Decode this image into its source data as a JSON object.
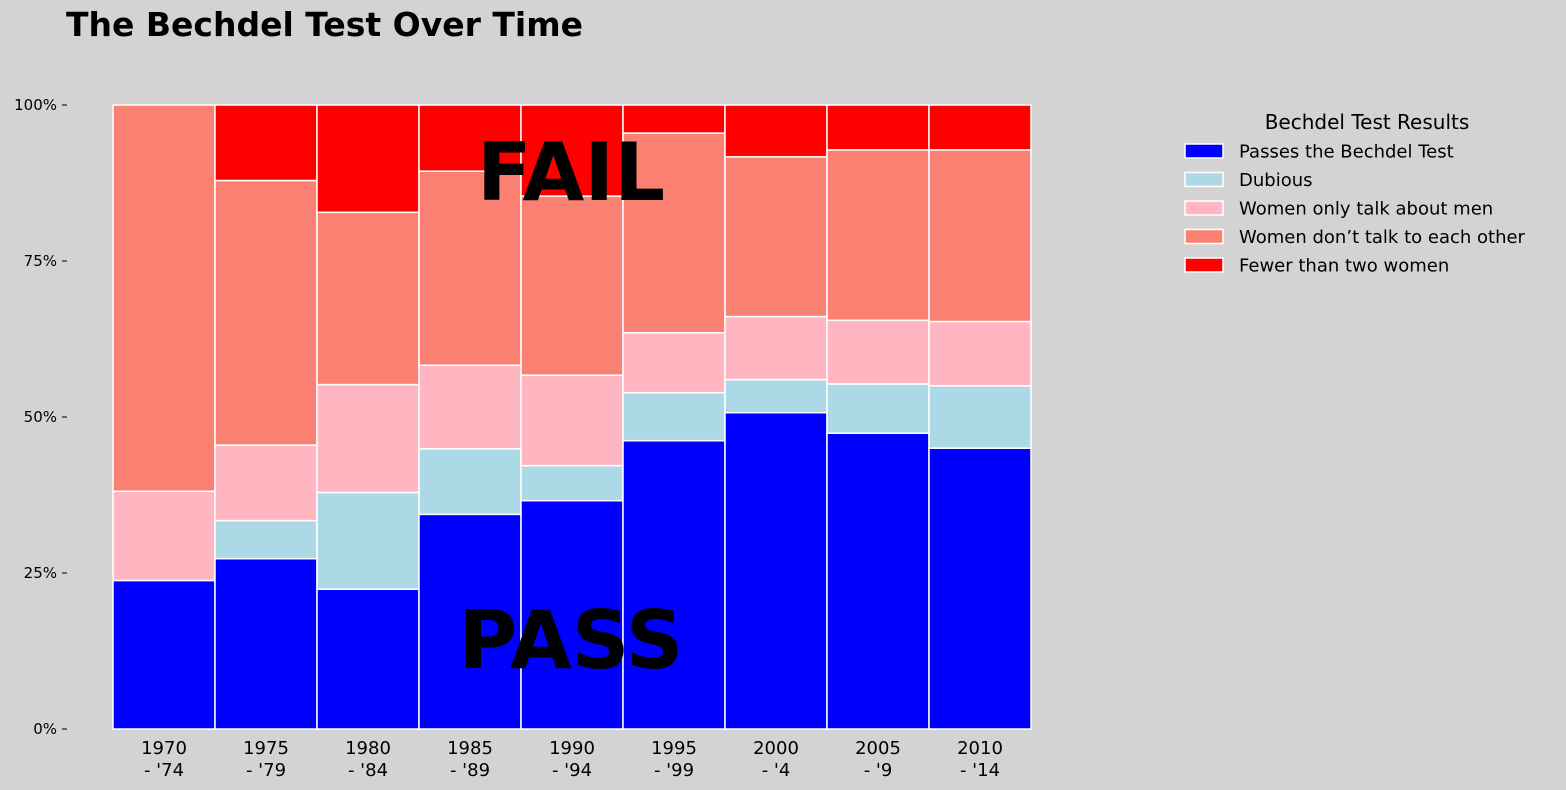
{
  "chart_data": {
    "type": "bar",
    "stacked": true,
    "title": "The Bechdel Test Over Time",
    "categories": [
      [
        "1970",
        "- '74"
      ],
      [
        "1975",
        "- '79"
      ],
      [
        "1980",
        "- '84"
      ],
      [
        "1985",
        "- '89"
      ],
      [
        "1990",
        "- '94"
      ],
      [
        "1995",
        "- '99"
      ],
      [
        "2000",
        "- '4"
      ],
      [
        "2005",
        "- '9"
      ],
      [
        "2010",
        "- '14"
      ]
    ],
    "yticks": [
      "0%",
      "25%",
      "50%",
      "75%",
      "100%"
    ],
    "ylim": [
      0,
      100
    ],
    "series": [
      {
        "name": "Passes the Bechdel Test",
        "color": "#0000ff",
        "values": [
          23.8,
          27.3,
          22.4,
          34.4,
          36.6,
          46.2,
          50.7,
          47.4,
          45.0
        ]
      },
      {
        "name": "Dubious",
        "color": "#add8e6",
        "values": [
          0.0,
          6.1,
          15.5,
          10.5,
          5.6,
          7.7,
          5.3,
          7.9,
          10.0
        ]
      },
      {
        "name": "Women only talk about men",
        "color": "#ffb6c1",
        "values": [
          14.3,
          12.1,
          17.3,
          13.4,
          14.5,
          9.6,
          10.1,
          10.2,
          10.3
        ]
      },
      {
        "name": "Women don’t talk to each other",
        "color": "#fa8072",
        "values": [
          61.9,
          42.4,
          27.6,
          31.1,
          28.7,
          32.0,
          25.6,
          27.3,
          27.5
        ]
      },
      {
        "name": "Fewer than two women",
        "color": "#ff0000",
        "values": [
          0.0,
          12.1,
          17.2,
          10.6,
          14.6,
          4.5,
          8.3,
          7.2,
          7.2
        ]
      }
    ],
    "annotations": [
      "FAIL",
      "PASS"
    ],
    "legend": {
      "title": "Bechdel Test Results",
      "placement": "outside-right-top"
    },
    "grid": false
  }
}
